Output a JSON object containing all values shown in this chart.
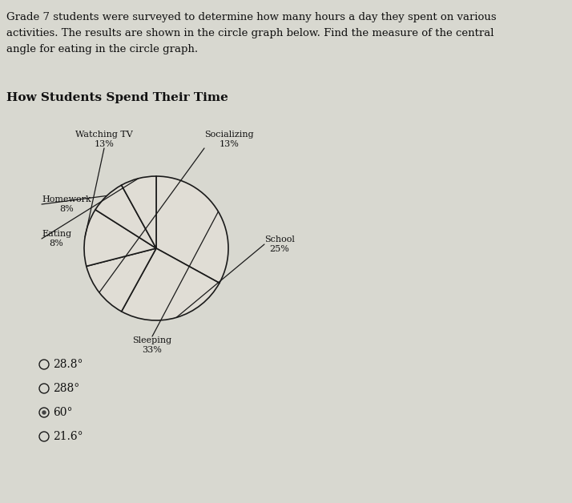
{
  "title": "How Students Spend Their Time",
  "question_line1": "Grade 7 students were surveyed to determine how many hours a day they spent on various",
  "question_line2": "activities. The results are shown in the circle graph below. Find the measure of the central",
  "question_line3": "angle for eating in the circle graph.",
  "slices": [
    {
      "label": "Sleeping",
      "pct": 33
    },
    {
      "label": "School",
      "pct": 25
    },
    {
      "label": "Socializing",
      "pct": 13
    },
    {
      "label": "Watching TV",
      "pct": 13
    },
    {
      "label": "Homework",
      "pct": 8
    },
    {
      "label": "Eating",
      "pct": 8
    }
  ],
  "choices": [
    "28.8°",
    "288°",
    "60°",
    "21.6°"
  ],
  "bg_color": "#d8d8d0",
  "pie_facecolor": "#e0ddd5",
  "pie_edge_color": "#1a1a1a",
  "text_color": "#111111",
  "title_fontsize": 11,
  "question_fontsize": 9.5,
  "label_fontsize": 8,
  "choice_fontsize": 10
}
